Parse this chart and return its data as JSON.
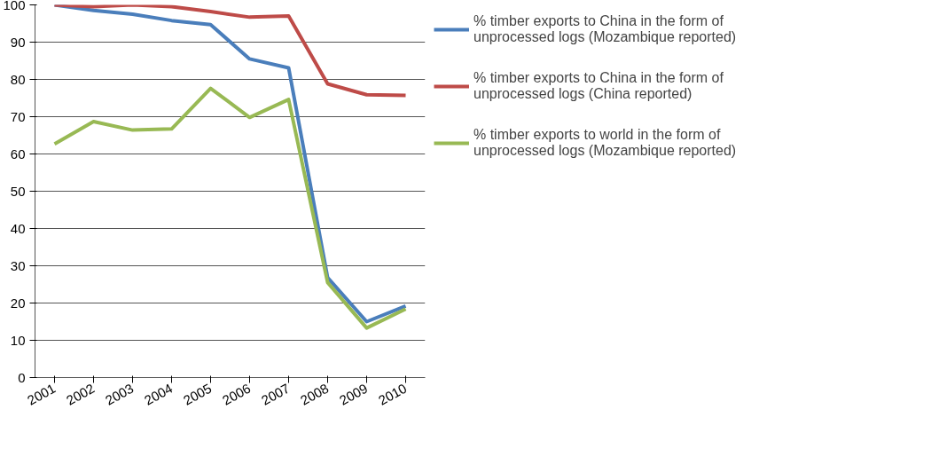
{
  "chart_data": {
    "type": "line",
    "categories": [
      "2001",
      "2002",
      "2003",
      "2004",
      "2005",
      "2006",
      "2007",
      "2008",
      "2009",
      "2010"
    ],
    "series": [
      {
        "name": "% timber exports to China in the form of unprocessed logs (Mozambique reported)",
        "color": "#4a7ebb",
        "values": [
          100,
          98.5,
          97.5,
          95.8,
          94.7,
          85.5,
          83.1,
          26.8,
          15,
          19.2
        ]
      },
      {
        "name": "% timber exports to China in the form of unprocessed logs (China reported)",
        "color": "#be4b48",
        "values": [
          100,
          99.5,
          100,
          99.5,
          98.2,
          96.7,
          97,
          78.8,
          75.9,
          75.7
        ]
      },
      {
        "name": "% timber exports to world in the form of unprocessed logs (Mozambique reported)",
        "color": "#98b954",
        "values": [
          62.7,
          68.7,
          66.4,
          66.7,
          77.6,
          69.8,
          74.6,
          25.5,
          13.3,
          18.4
        ]
      }
    ],
    "ylim": [
      0,
      100
    ],
    "yticks": [
      0,
      10,
      20,
      30,
      40,
      50,
      60,
      70,
      80,
      90,
      100
    ],
    "grid": "y",
    "legend": "right",
    "line_style": "solid"
  }
}
